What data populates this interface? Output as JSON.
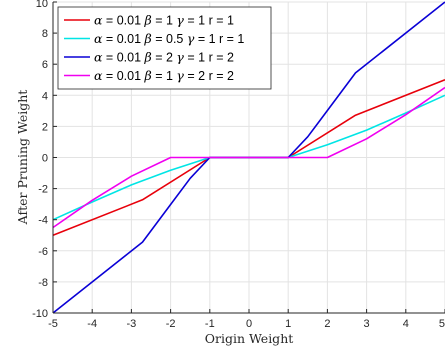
{
  "chart_data": {
    "type": "line",
    "title": "",
    "xlabel": "Origin Weight",
    "ylabel": "After Pruning Weight",
    "xlim": [
      -5,
      5
    ],
    "ylim": [
      -10,
      10
    ],
    "xticks": [
      -5,
      -4,
      -3,
      -2,
      -1,
      0,
      1,
      2,
      3,
      4,
      5
    ],
    "yticks": [
      -10,
      -8,
      -6,
      -4,
      -2,
      0,
      2,
      4,
      6,
      8,
      10
    ],
    "grid": true,
    "legend_position": "top-left",
    "series": [
      {
        "name": "α = 0.01 β = 1 γ = 1 r = 1",
        "label_parts": [
          "α",
          " = 0.01 ",
          "β",
          " = 1 ",
          "γ",
          " = 1 r = 1"
        ],
        "color": "#e8000b",
        "x": [
          -5,
          -2.718,
          -1,
          1,
          2.718,
          5
        ],
        "y": [
          -5,
          -2.718,
          0,
          0,
          2.718,
          5
        ]
      },
      {
        "name": "α = 0.01 β = 0.5 γ = 1 r = 1",
        "label_parts": [
          "α",
          " = 0.01 ",
          "β",
          " = 0.5 ",
          "γ",
          " = 1 r = 1"
        ],
        "color": "#00e5e5",
        "x": [
          -5,
          -4,
          -3,
          -2,
          -1,
          1,
          2,
          3,
          4,
          5
        ],
        "y": [
          -4.0,
          -2.86,
          -1.76,
          -0.82,
          0,
          0,
          0.82,
          1.76,
          2.86,
          4.0
        ]
      },
      {
        "name": "α = 0.01 β = 2 γ = 1 r = 2",
        "label_parts": [
          "α",
          " = 0.01 ",
          "β",
          " = 2 ",
          "γ",
          " = 1 r = 2"
        ],
        "color": "#0a00d6",
        "x": [
          -5,
          -2.718,
          -2,
          -1.5,
          -1,
          1,
          1.5,
          2,
          2.718,
          5
        ],
        "y": [
          -10,
          -5.44,
          -3.02,
          -1.34,
          0,
          0,
          1.34,
          3.02,
          5.44,
          10
        ]
      },
      {
        "name": "α = 0.01 β = 1 γ = 2 r = 2",
        "label_parts": [
          "α",
          " = 0.01 ",
          "β",
          " = 1 ",
          "γ",
          " = 2 r = 2"
        ],
        "color": "#f000f0",
        "x": [
          -5,
          -4,
          -3,
          -2,
          2,
          3,
          4,
          5
        ],
        "y": [
          -4.5,
          -2.75,
          -1.2,
          0,
          0,
          1.2,
          2.75,
          4.5
        ]
      }
    ]
  }
}
